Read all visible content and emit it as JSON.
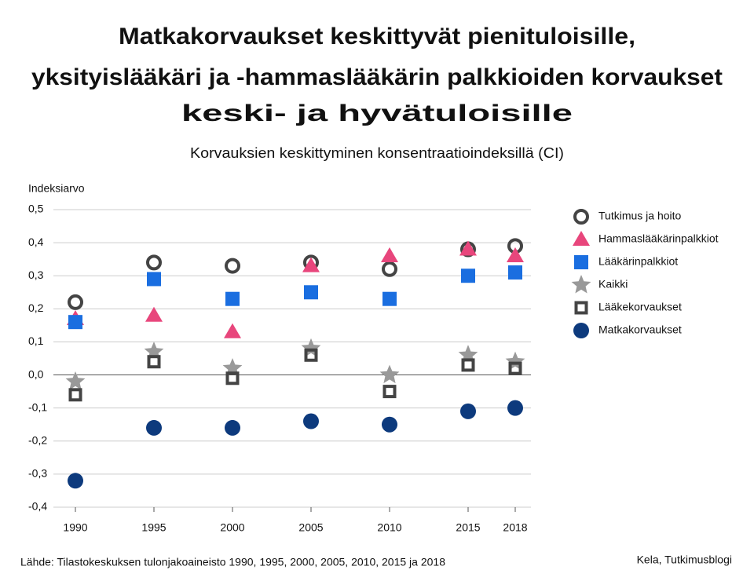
{
  "chart_data": {
    "type": "scatter",
    "title": [
      "Matkakorvaukset keskittyvät pienituloisille,",
      "yksityislääkäri ja -hammaslääkärin palkkioiden korvaukset",
      "keski- ja hyvätuloisille"
    ],
    "subtitle": "Korvauksien keskittyminen konsentraatioindeksillä (CI)",
    "y_label": "Indeksiarvo",
    "source": "Lähde: Tilastokeskuksen tulonjakoaineisto 1990, 1995, 2000, 2005, 2010, 2015 ja 2018",
    "credit": "Kela, Tutkimusblogi",
    "x": [
      1990,
      1995,
      2000,
      2005,
      2010,
      2015,
      2018
    ],
    "xlim": [
      1988.6,
      2019
    ],
    "xticks": [
      1990,
      1995,
      2000,
      2005,
      2010,
      2015,
      2018
    ],
    "ylim": [
      -0.4,
      0.5
    ],
    "yticks": [
      {
        "value": 0.5,
        "label": "0,5"
      },
      {
        "value": 0.4,
        "label": "0,4"
      },
      {
        "value": 0.3,
        "label": "0,3"
      },
      {
        "value": 0.2,
        "label": "0,2"
      },
      {
        "value": 0.1,
        "label": "0,1"
      },
      {
        "value": 0,
        "label": "0,0"
      },
      {
        "value": -0.1,
        "label": "-0,1"
      },
      {
        "value": -0.2,
        "label": "-0,2"
      },
      {
        "value": -0.3,
        "label": "-0,3"
      },
      {
        "value": -0.4,
        "label": "-0,4"
      }
    ],
    "grid": true,
    "legend": "right",
    "series": [
      {
        "name": "Tutkimus ja hoito",
        "color": "#444444",
        "marker": "circle-open",
        "values": [
          0.22,
          0.34,
          0.33,
          0.34,
          0.32,
          0.38,
          0.39
        ]
      },
      {
        "name": "Hammaslääkärinpalkkiot",
        "color": "#e8467c",
        "marker": "triangle",
        "values": [
          0.17,
          0.18,
          0.13,
          0.33,
          0.36,
          0.38,
          0.36
        ]
      },
      {
        "name": "Lääkärinpalkkiot",
        "color": "#1a6ee0",
        "marker": "square",
        "values": [
          0.16,
          0.29,
          0.23,
          0.25,
          0.23,
          0.3,
          0.31
        ]
      },
      {
        "name": "Kaikki",
        "color": "#999999",
        "marker": "star",
        "values": [
          -0.02,
          0.07,
          0.02,
          0.08,
          0.0,
          0.06,
          0.04
        ]
      },
      {
        "name": "Lääkekorvaukset",
        "color": "#444444",
        "marker": "square-open",
        "values": [
          -0.06,
          0.04,
          -0.01,
          0.06,
          -0.05,
          0.03,
          0.02
        ]
      },
      {
        "name": "Matkakorvaukset",
        "color": "#0d3a7d",
        "marker": "circle",
        "values": [
          -0.32,
          -0.16,
          -0.16,
          -0.14,
          -0.15,
          -0.11,
          -0.1
        ]
      }
    ]
  }
}
